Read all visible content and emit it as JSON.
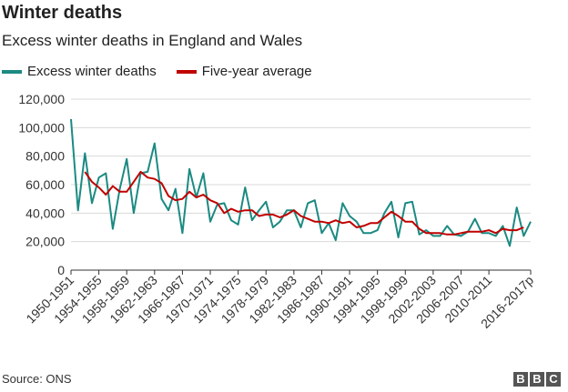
{
  "title": "Winter deaths",
  "subtitle": "Excess winter deaths in England and Wales",
  "source": "Source: ONS",
  "logo": [
    "B",
    "B",
    "C"
  ],
  "colors": {
    "excess": "#1b8a82",
    "average": "#c00000",
    "grid": "#d9d9d9",
    "axis": "#333333"
  },
  "chart_data": {
    "type": "line",
    "title": "Winter deaths",
    "xlabel": "",
    "ylabel": "",
    "ylim": [
      0,
      120000
    ],
    "yticks": [
      0,
      20000,
      40000,
      60000,
      80000,
      100000,
      120000
    ],
    "ytick_labels": [
      "0",
      "20,000",
      "40,000",
      "60,000",
      "80,000",
      "100,000",
      "120,000"
    ],
    "x_tick_labels": [
      {
        "index": 0,
        "label": "1950-1951"
      },
      {
        "index": 4,
        "label": "1954-1955"
      },
      {
        "index": 8,
        "label": "1958-1959"
      },
      {
        "index": 12,
        "label": "1962-1963"
      },
      {
        "index": 16,
        "label": "1966-1967"
      },
      {
        "index": 20,
        "label": "1970-1971"
      },
      {
        "index": 24,
        "label": "1974-1975"
      },
      {
        "index": 28,
        "label": "1978-1979"
      },
      {
        "index": 32,
        "label": "1982-1983"
      },
      {
        "index": 36,
        "label": "1986-1987"
      },
      {
        "index": 40,
        "label": "1990-1991"
      },
      {
        "index": 44,
        "label": "1994-1995"
      },
      {
        "index": 48,
        "label": "1998-1999"
      },
      {
        "index": 52,
        "label": "2002-2003"
      },
      {
        "index": 56,
        "label": "2006-2007"
      },
      {
        "index": 60,
        "label": "2010-2011"
      },
      {
        "index": 66,
        "label": "2016-2017p"
      }
    ],
    "series": [
      {
        "name": "Excess winter deaths",
        "start_index": 0,
        "values": [
          106000,
          42000,
          82000,
          47000,
          65000,
          68000,
          29000,
          57000,
          78000,
          40000,
          68000,
          69000,
          89000,
          50000,
          42000,
          57000,
          26000,
          71000,
          51000,
          68000,
          34000,
          46000,
          47000,
          35000,
          32000,
          58000,
          35000,
          42000,
          48000,
          30000,
          34000,
          42000,
          42000,
          30000,
          47000,
          49000,
          26000,
          33000,
          21000,
          47000,
          38000,
          34000,
          26000,
          26000,
          28000,
          40000,
          48000,
          23000,
          47000,
          48000,
          25000,
          28000,
          24000,
          24000,
          31000,
          25000,
          24000,
          27000,
          36000,
          26000,
          26000,
          24000,
          31000,
          17000,
          44000,
          24000,
          34000
        ]
      },
      {
        "name": "Five-year average",
        "start_index": 2,
        "values": [
          69000,
          62000,
          58000,
          53000,
          59000,
          55000,
          55000,
          62000,
          69000,
          65000,
          64000,
          61000,
          52000,
          49000,
          50000,
          55000,
          51000,
          53000,
          49000,
          47000,
          40000,
          43000,
          41000,
          42000,
          42000,
          38000,
          39000,
          39000,
          37000,
          39000,
          42000,
          38000,
          36000,
          34000,
          34000,
          33000,
          35000,
          33000,
          34000,
          30000,
          31000,
          33000,
          33000,
          37000,
          41000,
          38000,
          34000,
          34000,
          29000,
          26000,
          26000,
          26000,
          25000,
          25000,
          26000,
          27000,
          27000,
          27000,
          28000,
          26000,
          29000,
          28000,
          28000,
          30000
        ]
      }
    ]
  }
}
